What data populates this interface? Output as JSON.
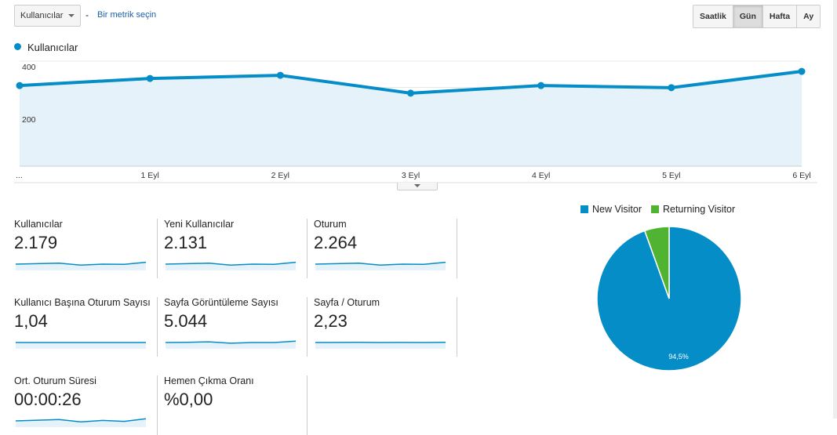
{
  "toolbar": {
    "metric_select": "Kullanıcılar",
    "separator": "-",
    "second_metric_link": "Bir metrik seçin",
    "granularity": [
      {
        "label": "Saatlik",
        "active": false
      },
      {
        "label": "Gün",
        "active": true
      },
      {
        "label": "Hafta",
        "active": false
      },
      {
        "label": "Ay",
        "active": false
      }
    ]
  },
  "chart_data": {
    "type": "area",
    "legend": "Kullanıcılar",
    "color": "#058dc7",
    "categories": [
      "...",
      "1 Eyl",
      "2 Eyl",
      "3 Eyl",
      "4 Eyl",
      "5 Eyl",
      "6 Eyl"
    ],
    "values": [
      307,
      334,
      346,
      278,
      307,
      299,
      361
    ],
    "yticks": [
      "400",
      "200"
    ],
    "ylim": [
      0,
      400
    ],
    "grid": true
  },
  "cards": [
    {
      "title": "Kullanıcılar",
      "value": "2.179",
      "spark": [
        5,
        5.2,
        5.4,
        4.6,
        5,
        4.9,
        5.8
      ]
    },
    {
      "title": "Yeni Kullanıcılar",
      "value": "2.131",
      "spark": [
        5,
        5.2,
        5.4,
        4.6,
        5,
        4.9,
        5.8
      ]
    },
    {
      "title": "Oturum",
      "value": "2.264",
      "spark": [
        5,
        5.2,
        5.4,
        4.6,
        5,
        4.9,
        5.8
      ]
    },
    {
      "title": "Kullanıcı Başına Oturum Sayısı",
      "value": "1,04",
      "spark": [
        5,
        5,
        5,
        5,
        5,
        5,
        5
      ]
    },
    {
      "title": "Sayfa Görüntüleme Sayısı",
      "value": "5.044",
      "spark": [
        5,
        5.1,
        5.3,
        4.7,
        5,
        5,
        5.6
      ]
    },
    {
      "title": "Sayfa / Oturum",
      "value": "2,23",
      "spark": [
        5,
        5.05,
        5.1,
        5,
        5.05,
        5,
        5.1
      ]
    },
    {
      "title": "Ort. Oturum Süresi",
      "value": "00:00:26",
      "spark": [
        5,
        5.3,
        5.6,
        4.6,
        5.2,
        4.8,
        5.9
      ]
    },
    {
      "title": "Hemen Çıkma Oranı",
      "value": "%0,00",
      "spark": []
    }
  ],
  "pie": {
    "legend": [
      {
        "label": "New Visitor",
        "color": "#058dc7",
        "value": 94.5
      },
      {
        "label": "Returning Visitor",
        "color": "#50b432",
        "value": 5.5
      }
    ],
    "label": "94,5%"
  }
}
